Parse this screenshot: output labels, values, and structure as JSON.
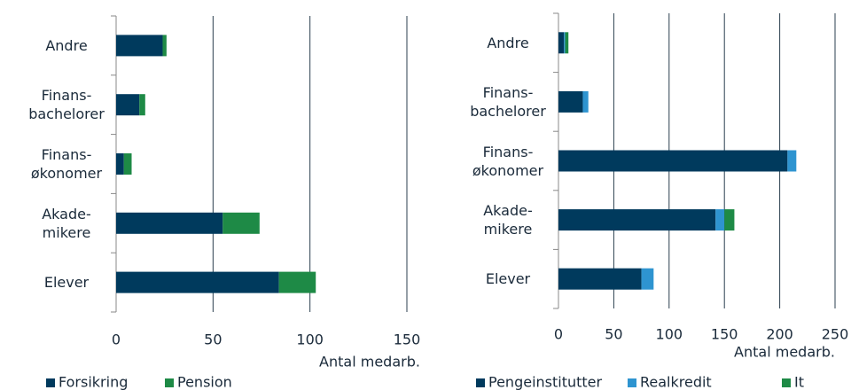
{
  "chart_data": [
    {
      "type": "bar",
      "orientation": "horizontal",
      "stacked": true,
      "categories": [
        "Andre",
        "Finans-\nbachelorer",
        "Finans-\nøkonomer",
        "Akade-\nmikere",
        "Elever"
      ],
      "series": [
        {
          "name": "Forsikring",
          "color": "#003a5d",
          "values": [
            24,
            12,
            4,
            55,
            84
          ]
        },
        {
          "name": "Pension",
          "color": "#1e8a46",
          "values": [
            2,
            3,
            4,
            19,
            19
          ]
        }
      ],
      "xlim": [
        0,
        150
      ],
      "xticks": [
        0,
        50,
        100,
        150
      ],
      "x_label": "Antal medarb.",
      "grid": true
    },
    {
      "type": "bar",
      "orientation": "horizontal",
      "stacked": true,
      "categories": [
        "Andre",
        "Finans-\nbachelorer",
        "Finans-\nøkonomer",
        "Akade-\nmikere",
        "Elever"
      ],
      "series": [
        {
          "name": "Pengeinstitutter",
          "color": "#003a5d",
          "values": [
            5,
            22,
            207,
            142,
            75
          ]
        },
        {
          "name": "Realkredit",
          "color": "#2e94d0",
          "values": [
            1,
            5,
            8,
            8,
            11
          ]
        },
        {
          "name": "It",
          "color": "#1e8a46",
          "values": [
            3,
            0,
            0,
            9,
            0
          ]
        }
      ],
      "xlim": [
        0,
        250
      ],
      "xticks": [
        0,
        50,
        100,
        150,
        200,
        250
      ],
      "x_label": "Antal medarb.",
      "grid": true
    }
  ]
}
